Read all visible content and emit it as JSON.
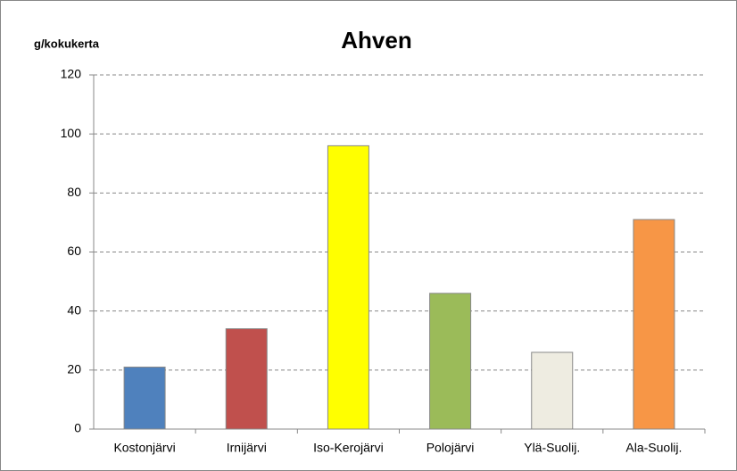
{
  "chart_data": {
    "type": "bar",
    "title": "Ahven",
    "y_label": "g/kokukerta",
    "categories": [
      "Kostonjärvi",
      "Irnijärvi",
      "Iso-Kerojärvi",
      "Polojärvi",
      "Ylä-Suolij.",
      "Ala-Suolij."
    ],
    "values": [
      21,
      34,
      96,
      46,
      26,
      71
    ],
    "colors": [
      "#4f81bd",
      "#c0504d",
      "#ffff00",
      "#9bbb59",
      "#eeece1",
      "#f79646"
    ],
    "ylim": [
      0,
      120
    ],
    "yticks": [
      0,
      20,
      40,
      60,
      80,
      100,
      120
    ],
    "grid": true
  }
}
